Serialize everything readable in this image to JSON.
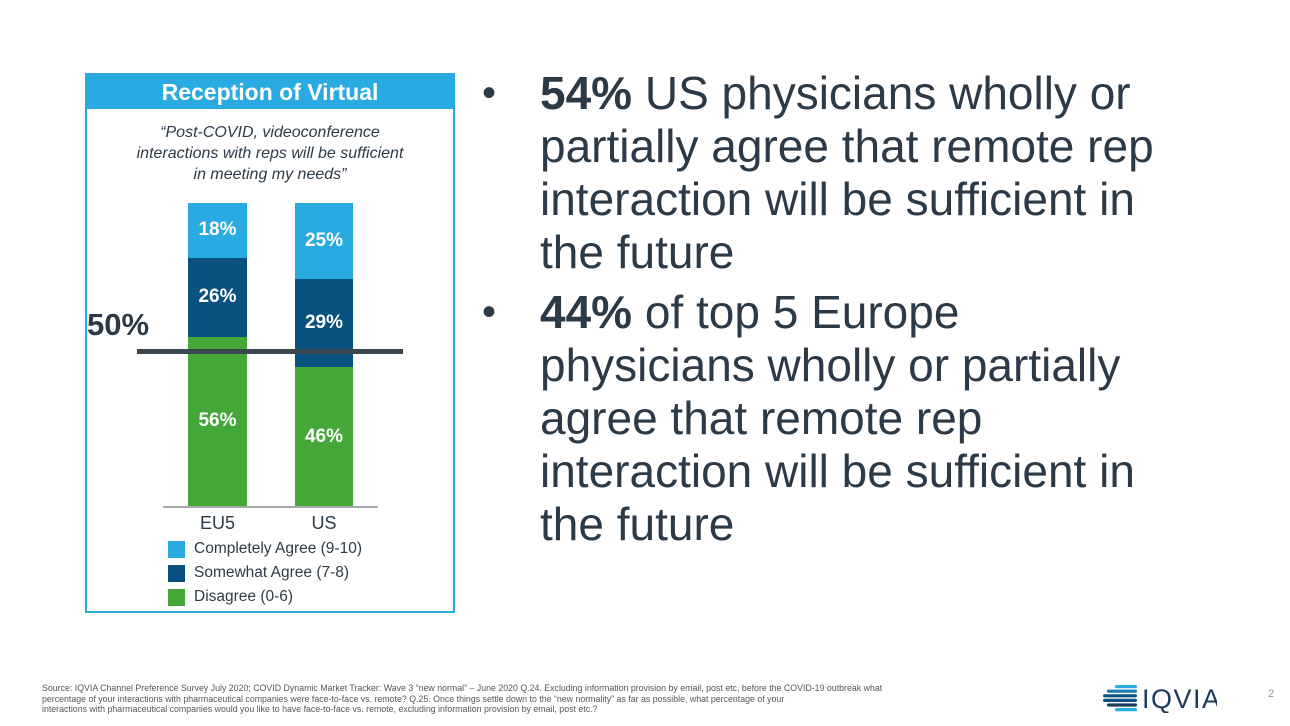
{
  "page": {
    "number": "2"
  },
  "chart_panel": {
    "title": "Reception of Virtual",
    "quote_lines": [
      "“Post-COVID, videoconference",
      "interactions with reps will be sufficient",
      "in meeting my needs”"
    ],
    "reference_label": "50%"
  },
  "chart_data": {
    "type": "bar",
    "stacked": true,
    "categories": [
      "EU5",
      "US"
    ],
    "series": [
      {
        "name": "Disagree (0-6)",
        "color": "#45a738",
        "values": [
          56,
          46
        ]
      },
      {
        "name": "Somewhat Agree (7-8)",
        "color": "#09527f",
        "values": [
          26,
          29
        ]
      },
      {
        "name": "Completely Agree (9-10)",
        "color": "#29abe2",
        "values": [
          18,
          25
        ]
      }
    ],
    "value_suffix": "%",
    "ylim": [
      0,
      100
    ],
    "reference_line": 50,
    "legend_position": "bottom-left",
    "gridlines": false
  },
  "bullets": {
    "marker": "•",
    "items": [
      {
        "highlight": "54%",
        "lines": [
          "US physicians wholly or",
          "partially agree that remote rep",
          "interaction will be sufficient in",
          "the future"
        ]
      },
      {
        "highlight": "44%",
        "lines": [
          "of top 5 Europe",
          "physicians wholly or partially",
          "agree that remote rep",
          "interaction will be sufficient in",
          "the future"
        ]
      }
    ]
  },
  "footer": {
    "lines": [
      "Source: IQVIA Channel Preference Survey July 2020; COVID Dynamic Market Tracker: Wave 3 “new normal” – June 2020 Q.24. Excluding information provision by email, post etc, before the COVID-19 outbreak what",
      "percentage of your interactions with pharmaceutical companies were face-to-face vs. remote? Q.25. Once things settle down to the “new normality” as far as possible, what percentage of your",
      "interactions with pharmaceutical companies would you like to have face-to-face vs. remote, excluding information provision by email, post etc.?"
    ]
  },
  "logo": {
    "text": "IQVIA"
  },
  "colors": {
    "accent_blue": "#29abe2",
    "dark_blue": "#09527f",
    "green": "#45a738",
    "text_dark": "#2c3a47",
    "reference_line": "#3a4750",
    "axis_gray": "#a6a9ac",
    "footer_gray": "#54565a",
    "logo_navy": "#1b3a5c"
  }
}
